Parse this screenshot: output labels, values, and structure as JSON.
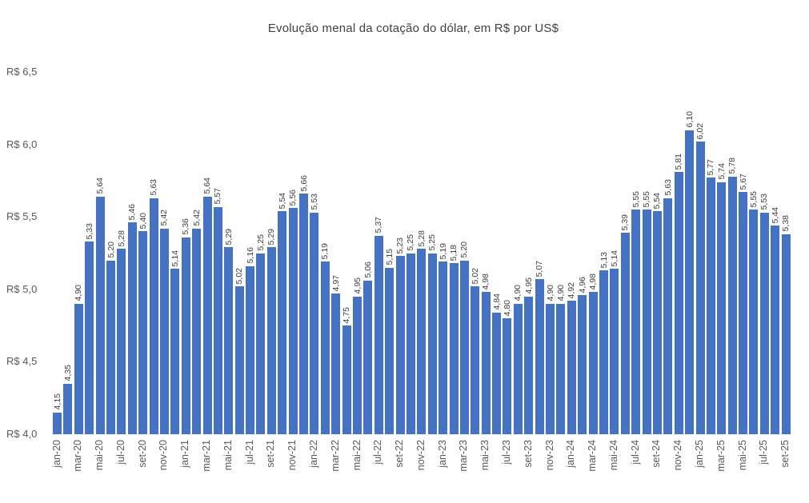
{
  "chart_data": {
    "type": "bar",
    "title": "Evolução menal da cotação do dólar, em R$ por US$",
    "xlabel": "",
    "ylabel": "",
    "ylim": [
      4.0,
      6.5
    ],
    "grid": false,
    "legend_position": "none",
    "decimal_separator": ",",
    "bar_color": "#4472C4",
    "title_color": "#404040",
    "value_label_color": "#404040",
    "axis_label_color": "#595959",
    "x_tick_interval": 2,
    "yticks": [
      {
        "value": 4.0,
        "label": "R$ 4,0"
      },
      {
        "value": 4.5,
        "label": "R$ 4,5"
      },
      {
        "value": 5.0,
        "label": "R$ 5,0"
      },
      {
        "value": 5.5,
        "label": "R$ 5,5"
      },
      {
        "value": 6.0,
        "label": "R$ 6,0"
      },
      {
        "value": 6.5,
        "label": "R$ 6,5"
      }
    ],
    "categories": [
      "jan-20",
      "fev-20",
      "mar-20",
      "abr-20",
      "mai-20",
      "jun-20",
      "jul-20",
      "ago-20",
      "set-20",
      "out-20",
      "nov-20",
      "dez-20",
      "jan-21",
      "fev-21",
      "mar-21",
      "abr-21",
      "mai-21",
      "jun-21",
      "jul-21",
      "ago-21",
      "set-21",
      "out-21",
      "nov-21",
      "dez-21",
      "jan-22",
      "fev-22",
      "mar-22",
      "abr-22",
      "mai-22",
      "jun-22",
      "jul-22",
      "ago-22",
      "set-22",
      "out-22",
      "nov-22",
      "dez-22",
      "jan-23",
      "fev-23",
      "mar-23",
      "abr-23",
      "mai-23",
      "jun-23",
      "jul-23",
      "ago-23",
      "set-23",
      "out-23",
      "nov-23",
      "dez-23",
      "jan-24",
      "fev-24",
      "mar-24",
      "abr-24",
      "mai-24",
      "jun-24",
      "jul-24",
      "ago-24",
      "set-24",
      "out-24",
      "nov-24",
      "dez-24",
      "jan-25",
      "fev-25",
      "mar-25",
      "abr-25",
      "mai-25",
      "jun-25",
      "jul-25",
      "ago-25",
      "set-25"
    ],
    "values": [
      4.15,
      4.35,
      4.9,
      5.33,
      5.64,
      5.2,
      5.28,
      5.46,
      5.4,
      5.63,
      5.42,
      5.14,
      5.36,
      5.42,
      5.64,
      5.57,
      5.29,
      5.02,
      5.16,
      5.25,
      5.29,
      5.54,
      5.56,
      5.66,
      5.53,
      5.19,
      4.97,
      4.75,
      4.95,
      5.06,
      5.37,
      5.15,
      5.23,
      5.25,
      5.28,
      5.25,
      5.19,
      5.18,
      5.2,
      5.02,
      4.98,
      4.84,
      4.8,
      4.9,
      4.95,
      5.07,
      4.9,
      4.9,
      4.92,
      4.96,
      4.98,
      5.13,
      5.14,
      5.39,
      5.55,
      5.55,
      5.54,
      5.63,
      5.81,
      6.1,
      6.02,
      5.77,
      5.74,
      5.78,
      5.67,
      5.55,
      5.53,
      5.44,
      5.38
    ]
  }
}
